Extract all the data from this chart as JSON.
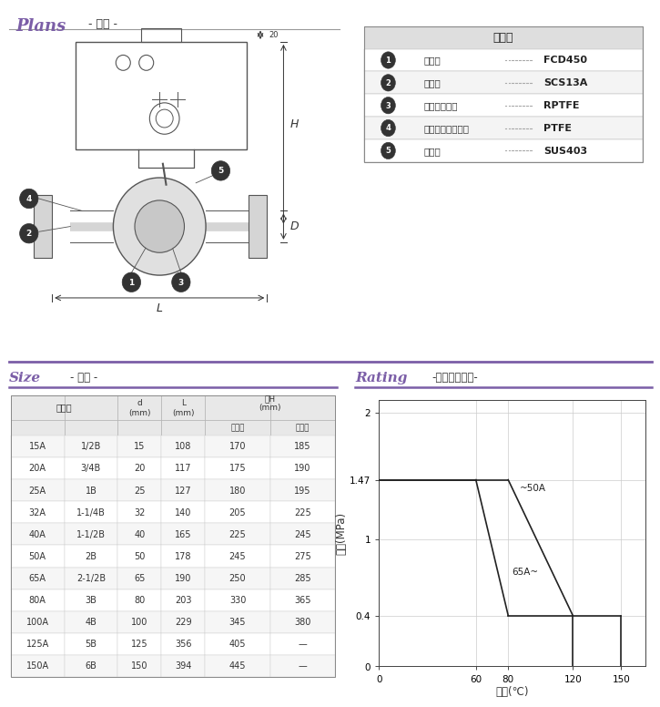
{
  "materials": [
    {
      "num": "1",
      "name": "ボディ",
      "value": "FCD450"
    },
    {
      "num": "2",
      "name": "ボール",
      "value": "SCS13A"
    },
    {
      "num": "3",
      "name": "ボールシート",
      "value": "RPTFE"
    },
    {
      "num": "4",
      "name": "グランドパッキン",
      "value": "PTFE"
    },
    {
      "num": "5",
      "name": "ステム",
      "value": "SUS403"
    }
  ],
  "materials_title": "材質表",
  "table_col1": [
    "15A",
    "20A",
    "25A",
    "32A",
    "40A",
    "50A",
    "65A",
    "80A",
    "100A",
    "125A",
    "150A"
  ],
  "table_col2": [
    "1/2B",
    "3/4B",
    "1B",
    "1-1/4B",
    "1-1/2B",
    "2B",
    "2-1/2B",
    "3B",
    "4B",
    "5B",
    "6B"
  ],
  "table_col3": [
    "15",
    "20",
    "25",
    "32",
    "40",
    "50",
    "65",
    "80",
    "100",
    "125",
    "150"
  ],
  "table_col4": [
    "108",
    "117",
    "127",
    "140",
    "165",
    "178",
    "190",
    "203",
    "229",
    "356",
    "394"
  ],
  "table_col5": [
    "170",
    "175",
    "180",
    "205",
    "225",
    "245",
    "250",
    "330",
    "345",
    "405",
    "445"
  ],
  "table_col6": [
    "185",
    "190",
    "195",
    "225",
    "245",
    "275",
    "285",
    "365",
    "380",
    "—",
    "—"
  ],
  "purple_color": "#7b5ea7",
  "bg_color": "#ffffff",
  "header_bg": "#e8e8e8",
  "line_color": "#333333",
  "edge_color": "#888888",
  "light_gray": "#dddddd"
}
